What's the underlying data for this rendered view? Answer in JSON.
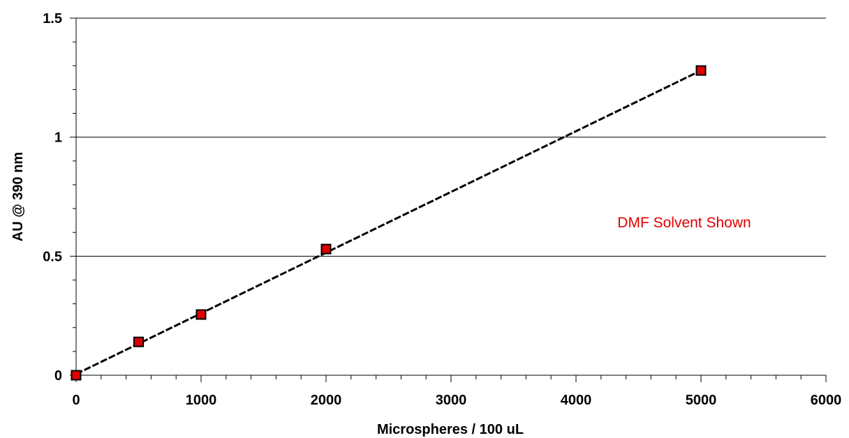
{
  "chart_data": {
    "type": "scatter",
    "xlabel": "Microspheres / 100 uL",
    "ylabel": "AU @ 390 nm",
    "xlim": [
      0,
      6000
    ],
    "ylim": [
      0,
      1.5
    ],
    "x_ticks": [
      0,
      1000,
      2000,
      3000,
      4000,
      5000,
      6000
    ],
    "x_tick_labels": [
      "0",
      "1000",
      "2000",
      "3000",
      "4000",
      "5000",
      "6000"
    ],
    "y_ticks": [
      0,
      0.5,
      1,
      1.5
    ],
    "y_tick_labels": [
      "0",
      "0.5",
      "1",
      "1.5"
    ],
    "x_minor_step": 200,
    "y_minor_step": 0.1,
    "grid": "horizontal major",
    "series": [
      {
        "x": [
          0,
          500,
          1000,
          2000,
          5000
        ],
        "y": [
          0,
          0.14,
          0.255,
          0.53,
          1.28
        ],
        "marker": "square",
        "color": "#e00000"
      }
    ],
    "trendline": {
      "style": "dashed",
      "x": [
        0,
        5000
      ],
      "y": [
        0.005,
        1.28
      ]
    },
    "annotation": {
      "text": "DMF Solvent Shown",
      "color": "#e00000"
    }
  }
}
